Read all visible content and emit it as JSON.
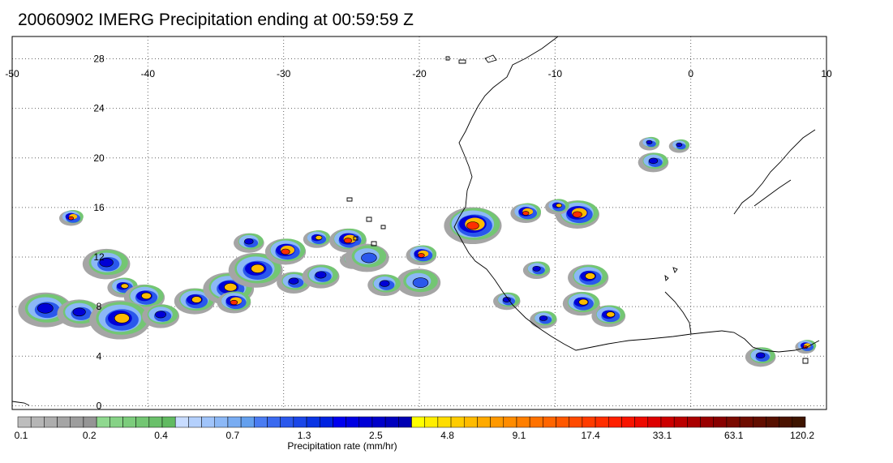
{
  "title": "20060902 IMERG Precipitation ending at 00:59:59 Z",
  "map": {
    "lon_range": [
      -50,
      10
    ],
    "lat_range": [
      -0.3,
      29.8
    ],
    "lon_ticks": [
      "-50",
      "-40",
      "-30",
      "-20",
      "-10",
      "0",
      "10"
    ],
    "lat_ticks": [
      "28",
      "24",
      "20",
      "16",
      "12",
      "8",
      "4",
      "0"
    ],
    "gridlines": "dotted",
    "coastline_color": "#000000"
  },
  "colorbar": {
    "xlabel": "Precipitation rate (mm/hr)",
    "tick_labels": [
      "0.1",
      "0.2",
      "0.4",
      "0.7",
      "1.3",
      "2.5",
      "4.8",
      "9.1",
      "17.4",
      "33.1",
      "63.1",
      "120.2"
    ],
    "colors": [
      "#bdbdbd",
      "#b5b5b5",
      "#adadad",
      "#a5a5a5",
      "#9d9d9d",
      "#959595",
      "#8fd88f",
      "#86d286",
      "#7ccc7c",
      "#73c673",
      "#6ac06a",
      "#61ba61",
      "#c8dcff",
      "#b4d0fc",
      "#a0c4fa",
      "#8cb8f6",
      "#78acf2",
      "#64a0ee",
      "#4a7cf2",
      "#3a6af0",
      "#2a58ec",
      "#1a46e8",
      "#0a34e4",
      "#0022e0",
      "#0000ee",
      "#0000e2",
      "#0000d6",
      "#0000ca",
      "#0000be",
      "#0000b2",
      "#ffff00",
      "#ffee00",
      "#ffdd00",
      "#ffcc00",
      "#ffbb00",
      "#ffaa00",
      "#ff9900",
      "#ff8c00",
      "#ff7f00",
      "#ff7200",
      "#ff6500",
      "#ff5800",
      "#ff4a00",
      "#ff3c00",
      "#ff2e00",
      "#ff2000",
      "#f81400",
      "#ee0a00",
      "#dd0000",
      "#cc0000",
      "#bb0000",
      "#aa0000",
      "#990000",
      "#880000",
      "#7a0a00",
      "#6e0c00",
      "#620e00",
      "#561000",
      "#4a1200",
      "#3e1400"
    ]
  },
  "precip_cells": [
    {
      "lon": -45.6,
      "lat": 15.2,
      "size": 0.7,
      "intensity": 5
    },
    {
      "lon": -43.0,
      "lat": 11.5,
      "size": 1.4,
      "intensity": 3
    },
    {
      "lon": -41.8,
      "lat": 9.6,
      "size": 0.9,
      "intensity": 4
    },
    {
      "lon": -40.2,
      "lat": 8.8,
      "size": 1.2,
      "intensity": 4
    },
    {
      "lon": -47.5,
      "lat": 7.8,
      "size": 1.6,
      "intensity": 3
    },
    {
      "lon": -45.0,
      "lat": 7.5,
      "size": 1.3,
      "intensity": 3
    },
    {
      "lon": -42.0,
      "lat": 7.0,
      "size": 1.8,
      "intensity": 4
    },
    {
      "lon": -39.0,
      "lat": 7.3,
      "size": 1.1,
      "intensity": 3
    },
    {
      "lon": -36.5,
      "lat": 8.5,
      "size": 1.2,
      "intensity": 4
    },
    {
      "lon": -34.0,
      "lat": 9.5,
      "size": 1.5,
      "intensity": 4
    },
    {
      "lon": -33.6,
      "lat": 8.4,
      "size": 1.0,
      "intensity": 5
    },
    {
      "lon": -32.0,
      "lat": 11.0,
      "size": 1.6,
      "intensity": 4
    },
    {
      "lon": -32.5,
      "lat": 13.2,
      "size": 0.9,
      "intensity": 3
    },
    {
      "lon": -29.8,
      "lat": 12.5,
      "size": 1.2,
      "intensity": 5
    },
    {
      "lon": -29.2,
      "lat": 10.0,
      "size": 1.0,
      "intensity": 3
    },
    {
      "lon": -27.5,
      "lat": 13.5,
      "size": 0.8,
      "intensity": 4
    },
    {
      "lon": -25.2,
      "lat": 13.4,
      "size": 1.1,
      "intensity": 5
    },
    {
      "lon": -27.2,
      "lat": 10.5,
      "size": 1.1,
      "intensity": 3
    },
    {
      "lon": -24.8,
      "lat": 11.8,
      "size": 0.8,
      "intensity": 3
    },
    {
      "lon": -23.8,
      "lat": 12.0,
      "size": 1.3,
      "intensity": 2
    },
    {
      "lon": -19.8,
      "lat": 12.2,
      "size": 0.9,
      "intensity": 5
    },
    {
      "lon": -20.0,
      "lat": 10.0,
      "size": 1.3,
      "intensity": 2
    },
    {
      "lon": -22.5,
      "lat": 9.8,
      "size": 1.0,
      "intensity": 3
    },
    {
      "lon": -16.0,
      "lat": 14.6,
      "size": 1.7,
      "intensity": 5
    },
    {
      "lon": -12.1,
      "lat": 15.6,
      "size": 0.9,
      "intensity": 5
    },
    {
      "lon": -8.3,
      "lat": 15.5,
      "size": 1.3,
      "intensity": 5
    },
    {
      "lon": -9.8,
      "lat": 16.1,
      "size": 0.7,
      "intensity": 4
    },
    {
      "lon": -7.5,
      "lat": 10.4,
      "size": 1.2,
      "intensity": 4
    },
    {
      "lon": -8.0,
      "lat": 8.3,
      "size": 1.1,
      "intensity": 4
    },
    {
      "lon": -6.0,
      "lat": 7.3,
      "size": 1.0,
      "intensity": 4
    },
    {
      "lon": -13.5,
      "lat": 8.5,
      "size": 0.8,
      "intensity": 3
    },
    {
      "lon": -11.3,
      "lat": 11.0,
      "size": 0.8,
      "intensity": 3
    },
    {
      "lon": -10.8,
      "lat": 7.0,
      "size": 0.8,
      "intensity": 3
    },
    {
      "lon": -2.7,
      "lat": 19.7,
      "size": 0.9,
      "intensity": 3
    },
    {
      "lon": -0.8,
      "lat": 21.0,
      "size": 0.6,
      "intensity": 3
    },
    {
      "lon": -3.0,
      "lat": 21.2,
      "size": 0.6,
      "intensity": 3
    },
    {
      "lon": 5.2,
      "lat": 4.0,
      "size": 0.9,
      "intensity": 3
    },
    {
      "lon": 8.5,
      "lat": 4.8,
      "size": 0.6,
      "intensity": 6
    }
  ]
}
